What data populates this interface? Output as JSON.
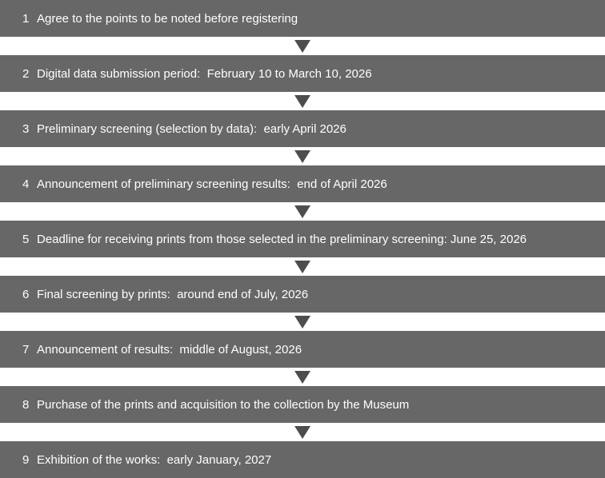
{
  "flow": {
    "bar_color": "#676767",
    "arrow_color": "#4d4d4d",
    "text_color": "#ffffff",
    "steps": [
      {
        "num": "1",
        "label": "Agree to the points to be noted before registering"
      },
      {
        "num": "2",
        "label": "Digital data submission period:  February 10 to March 10, 2026"
      },
      {
        "num": "3",
        "label": "Preliminary screening (selection by data):  early April 2026"
      },
      {
        "num": "4",
        "label": "Announcement of preliminary screening results:  end of April 2026"
      },
      {
        "num": "5",
        "label": "Deadline for receiving prints from those selected in the preliminary screening: June 25, 2026"
      },
      {
        "num": "6",
        "label": "Final screening by prints:  around end of July, 2026"
      },
      {
        "num": "7",
        "label": "Announcement of results:  middle of August, 2026"
      },
      {
        "num": "8",
        "label": "Purchase of the prints and acquisition to the collection by the Museum"
      },
      {
        "num": "9",
        "label": "Exhibition of the works:  early January, 2027"
      }
    ]
  }
}
